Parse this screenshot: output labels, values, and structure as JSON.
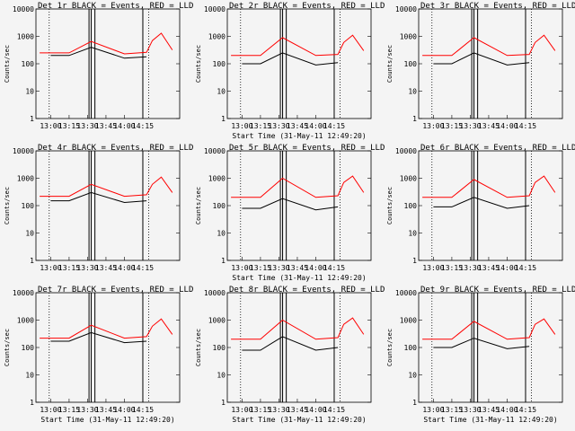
{
  "chart_data": [
    {
      "type": "line",
      "title": "Det 1r BLACK = Events, RED = LLD",
      "ylabel": "Counts/sec",
      "xlabel": "",
      "x_ticks": [
        "13:00",
        "13:15",
        "13:30",
        "13:45",
        "14:00",
        "14:15"
      ],
      "y_ticks": [
        "1",
        "10",
        "100",
        "1000",
        "10000"
      ],
      "ylim": [
        1,
        10000
      ],
      "y_scale": "log",
      "series": [
        {
          "color": "#ff0000",
          "x": [
            12.85,
            13.25,
            13.55,
            14.0,
            14.3,
            14.38,
            14.5,
            14.65
          ],
          "values": [
            250,
            250,
            650,
            230,
            260,
            700,
            1300,
            320
          ]
        },
        {
          "color": "#000000",
          "x": [
            13.0,
            13.25,
            13.55,
            14.0,
            14.3
          ],
          "values": [
            200,
            200,
            400,
            160,
            180
          ]
        }
      ]
    },
    {
      "type": "line",
      "title": "Det 2r BLACK = Events, RED = LLD",
      "ylabel": "Counts/sec",
      "xlabel": "Start Time (31-May-11 12:49:20)",
      "x_ticks": [
        "13:00",
        "13:15",
        "13:30",
        "13:45",
        "14:00",
        "14:15"
      ],
      "y_ticks": [
        "1",
        "10",
        "100",
        "1000",
        "10000"
      ],
      "ylim": [
        1,
        10000
      ],
      "y_scale": "log",
      "series": [
        {
          "color": "#ff0000",
          "x": [
            12.85,
            13.25,
            13.55,
            14.0,
            14.3,
            14.38,
            14.5,
            14.65
          ],
          "values": [
            200,
            200,
            900,
            200,
            220,
            600,
            1100,
            300
          ]
        },
        {
          "color": "#000000",
          "x": [
            13.0,
            13.25,
            13.55,
            14.0,
            14.3
          ],
          "values": [
            100,
            100,
            250,
            90,
            110
          ]
        }
      ]
    },
    {
      "type": "line",
      "title": "Det 3r BLACK = Events, RED = LLD",
      "ylabel": "Counts/sec",
      "xlabel": "",
      "x_ticks": [
        "13:00",
        "13:15",
        "13:30",
        "13:45",
        "14:00",
        "14:15"
      ],
      "y_ticks": [
        "1",
        "10",
        "100",
        "1000",
        "10000"
      ],
      "ylim": [
        1,
        10000
      ],
      "y_scale": "log",
      "series": [
        {
          "color": "#ff0000",
          "x": [
            12.85,
            13.25,
            13.55,
            14.0,
            14.3,
            14.38,
            14.5,
            14.65
          ],
          "values": [
            200,
            200,
            900,
            200,
            220,
            600,
            1100,
            300
          ]
        },
        {
          "color": "#000000",
          "x": [
            13.0,
            13.25,
            13.55,
            14.0,
            14.3
          ],
          "values": [
            100,
            100,
            250,
            90,
            110
          ]
        }
      ]
    },
    {
      "type": "line",
      "title": "Det 4r BLACK = Events, RED = LLD",
      "ylabel": "Counts/sec",
      "xlabel": "",
      "x_ticks": [
        "13:00",
        "13:15",
        "13:30",
        "13:45",
        "14:00",
        "14:15"
      ],
      "y_ticks": [
        "1",
        "10",
        "100",
        "1000",
        "10000"
      ],
      "ylim": [
        1,
        10000
      ],
      "y_scale": "log",
      "series": [
        {
          "color": "#ff0000",
          "x": [
            12.85,
            13.25,
            13.55,
            14.0,
            14.3,
            14.38,
            14.5,
            14.65
          ],
          "values": [
            220,
            220,
            600,
            220,
            250,
            600,
            1100,
            300
          ]
        },
        {
          "color": "#000000",
          "x": [
            13.0,
            13.25,
            13.55,
            14.0,
            14.3
          ],
          "values": [
            150,
            150,
            300,
            130,
            150
          ]
        }
      ]
    },
    {
      "type": "line",
      "title": "Det 5r BLACK = Events, RED = LLD",
      "ylabel": "Counts/sec",
      "xlabel": "Start Time (31-May-11 12:49:20)",
      "x_ticks": [
        "13:00",
        "13:15",
        "13:30",
        "13:45",
        "14:00",
        "14:15"
      ],
      "y_ticks": [
        "1",
        "10",
        "100",
        "1000",
        "10000"
      ],
      "ylim": [
        1,
        10000
      ],
      "y_scale": "log",
      "series": [
        {
          "color": "#ff0000",
          "x": [
            12.85,
            13.25,
            13.55,
            14.0,
            14.3,
            14.38,
            14.5,
            14.65
          ],
          "values": [
            200,
            200,
            1000,
            200,
            230,
            700,
            1200,
            300
          ]
        },
        {
          "color": "#000000",
          "x": [
            13.0,
            13.25,
            13.55,
            14.0,
            14.3
          ],
          "values": [
            80,
            80,
            180,
            70,
            90
          ]
        }
      ]
    },
    {
      "type": "line",
      "title": "Det 6r BLACK = Events, RED = LLD",
      "ylabel": "Counts/sec",
      "xlabel": "",
      "x_ticks": [
        "13:00",
        "13:15",
        "13:30",
        "13:45",
        "14:00",
        "14:15"
      ],
      "y_ticks": [
        "1",
        "10",
        "100",
        "1000",
        "10000"
      ],
      "ylim": [
        1,
        10000
      ],
      "y_scale": "log",
      "series": [
        {
          "color": "#ff0000",
          "x": [
            12.85,
            13.25,
            13.55,
            14.0,
            14.3,
            14.38,
            14.5,
            14.65
          ],
          "values": [
            200,
            200,
            900,
            200,
            230,
            700,
            1200,
            300
          ]
        },
        {
          "color": "#000000",
          "x": [
            13.0,
            13.25,
            13.55,
            14.0,
            14.3
          ],
          "values": [
            90,
            90,
            200,
            80,
            100
          ]
        }
      ]
    },
    {
      "type": "line",
      "title": "Det 7r BLACK = Events, RED = LLD",
      "ylabel": "Counts/sec",
      "xlabel": "Start Time (31-May-11 12:49:20)",
      "x_ticks": [
        "13:00",
        "13:15",
        "13:30",
        "13:45",
        "14:00",
        "14:15"
      ],
      "y_ticks": [
        "1",
        "10",
        "100",
        "1000",
        "10000"
      ],
      "ylim": [
        1,
        10000
      ],
      "y_scale": "log",
      "series": [
        {
          "color": "#ff0000",
          "x": [
            12.85,
            13.25,
            13.55,
            14.0,
            14.3,
            14.38,
            14.5,
            14.65
          ],
          "values": [
            220,
            220,
            650,
            220,
            250,
            600,
            1100,
            300
          ]
        },
        {
          "color": "#000000",
          "x": [
            13.0,
            13.25,
            13.55,
            14.0,
            14.3
          ],
          "values": [
            170,
            170,
            350,
            150,
            170
          ]
        }
      ]
    },
    {
      "type": "line",
      "title": "Det 8r BLACK = Events, RED = LLD",
      "ylabel": "Counts/sec",
      "xlabel": "Start Time (31-May-11 12:49:20)",
      "x_ticks": [
        "13:00",
        "13:15",
        "13:30",
        "13:45",
        "14:00",
        "14:15"
      ],
      "y_ticks": [
        "1",
        "10",
        "100",
        "1000",
        "10000"
      ],
      "ylim": [
        1,
        10000
      ],
      "y_scale": "log",
      "series": [
        {
          "color": "#ff0000",
          "x": [
            12.85,
            13.25,
            13.55,
            14.0,
            14.3,
            14.38,
            14.5,
            14.65
          ],
          "values": [
            200,
            200,
            1000,
            200,
            230,
            700,
            1200,
            300
          ]
        },
        {
          "color": "#000000",
          "x": [
            13.0,
            13.25,
            13.55,
            14.0,
            14.3
          ],
          "values": [
            80,
            80,
            250,
            80,
            100
          ]
        }
      ]
    },
    {
      "type": "line",
      "title": "Det 9r BLACK = Events, RED = LLD",
      "ylabel": "Counts/sec",
      "xlabel": "Start Time (31-May-11 12:49:20)",
      "x_ticks": [
        "13:00",
        "13:15",
        "13:30",
        "13:45",
        "14:00",
        "14:15"
      ],
      "y_ticks": [
        "1",
        "10",
        "100",
        "1000",
        "10000"
      ],
      "ylim": [
        1,
        10000
      ],
      "y_scale": "log",
      "series": [
        {
          "color": "#ff0000",
          "x": [
            12.85,
            13.25,
            13.55,
            14.0,
            14.3,
            14.38,
            14.5,
            14.65
          ],
          "values": [
            200,
            200,
            900,
            200,
            230,
            700,
            1100,
            300
          ]
        },
        {
          "color": "#000000",
          "x": [
            13.0,
            13.25,
            13.55,
            14.0,
            14.3
          ],
          "values": [
            100,
            100,
            220,
            90,
            110
          ]
        }
      ]
    }
  ]
}
